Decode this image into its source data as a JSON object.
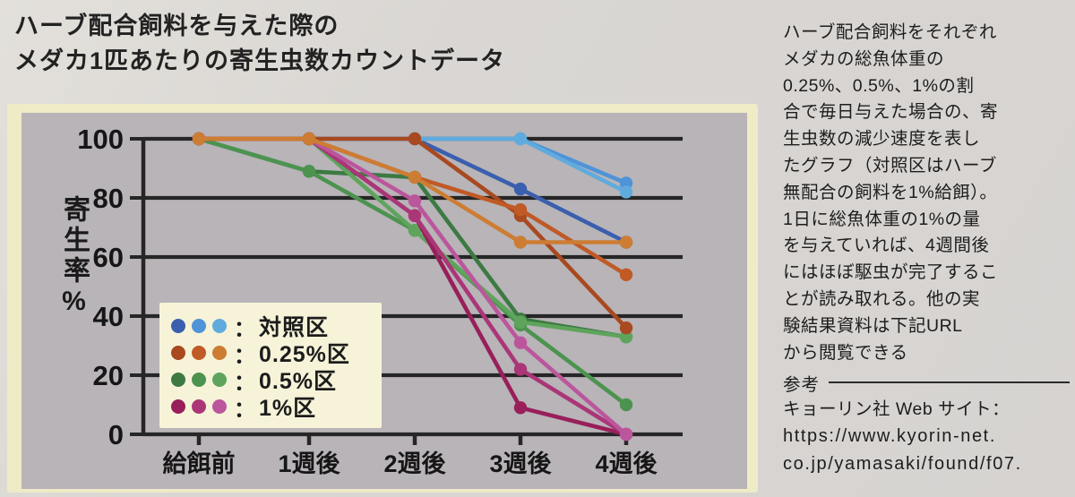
{
  "title": {
    "lines": [
      "ハーブ配合飼料を与えた際の",
      "メダカ1匹あたりの寄生虫数カウントデータ"
    ]
  },
  "sidebar": {
    "description_lines": [
      "ハーブ配合飼料をそれぞれ",
      "メダカの総魚体重の",
      "0.25%、0.5%、1%の割",
      "合で毎日与えた場合の、寄",
      "生虫数の減少速度を表し",
      "たグラフ（対照区はハーブ",
      "無配合の飼料を1%給餌）。",
      "1日に総魚体重の1%の量",
      "を与えていれば、4週間後",
      "にはほぼ駆虫が完了するこ",
      "とが読み取れる。他の実",
      "験結果資料は下記URL",
      "から閲覧できる"
    ],
    "reference_label": "参考",
    "site_label": "キョーリン社 Web サイト：",
    "url_lines": [
      "https://www.kyorin-net.",
      "co.jp/yamasaki/found/f07."
    ]
  },
  "chart_data": {
    "type": "line",
    "title": "メダカ1匹あたりの寄生虫数カウントデータ",
    "xlabel": "",
    "ylabel": "寄生率%",
    "categories": [
      "給餌前",
      "1週後",
      "2週後",
      "3週後",
      "4週後"
    ],
    "y_ticks": [
      100,
      80,
      60,
      40,
      20,
      0
    ],
    "ylim": [
      0,
      100
    ],
    "grid": true,
    "legend_position": "lower-left-inside",
    "legend_colon": "：",
    "panel_bg": "#eeebc6",
    "plot_bg": "#b8b4b8",
    "grid_color": "#262626",
    "legend_entries": [
      {
        "label": "対照区",
        "dot_colors": [
          "#3a5fae",
          "#4f93d8",
          "#60abdd"
        ]
      },
      {
        "label": "0.25%区",
        "dot_colors": [
          "#a8491f",
          "#c05a26",
          "#cd7d33"
        ]
      },
      {
        "label": "0.5%区",
        "dot_colors": [
          "#3c7a42",
          "#4d9350",
          "#5fa45c"
        ]
      },
      {
        "label": "1%区",
        "dot_colors": [
          "#981f5a",
          "#aa3678",
          "#bb569c"
        ]
      }
    ],
    "series": [
      {
        "group": "対照区",
        "replicate": 1,
        "color": "#3a5fae",
        "values": [
          100,
          100,
          100,
          83,
          65
        ]
      },
      {
        "group": "対照区",
        "replicate": 2,
        "color": "#4f93d8",
        "values": [
          100,
          100,
          100,
          100,
          85
        ]
      },
      {
        "group": "対照区",
        "replicate": 3,
        "color": "#60abdd",
        "values": [
          100,
          100,
          100,
          100,
          82
        ]
      },
      {
        "group": "0.5%区",
        "replicate": 1,
        "color": "#3c7a42",
        "values": [
          100,
          89,
          87,
          39,
          33
        ]
      },
      {
        "group": "0.5%区",
        "replicate": 2,
        "color": "#4d9350",
        "values": [
          100,
          89,
          69,
          37,
          10
        ]
      },
      {
        "group": "0.5%区",
        "replicate": 3,
        "color": "#5fa45c",
        "values": [
          100,
          100,
          69,
          38,
          33
        ]
      },
      {
        "group": "1%区",
        "replicate": 1,
        "color": "#981f5a",
        "values": [
          100,
          100,
          74,
          9,
          0
        ]
      },
      {
        "group": "1%区",
        "replicate": 2,
        "color": "#aa3678",
        "values": [
          100,
          100,
          74,
          22,
          0
        ]
      },
      {
        "group": "1%区",
        "replicate": 3,
        "color": "#bb569c",
        "values": [
          100,
          100,
          79,
          31,
          0
        ]
      },
      {
        "group": "0.25%区",
        "replicate": 1,
        "color": "#a8491f",
        "values": [
          100,
          100,
          100,
          74,
          36
        ]
      },
      {
        "group": "0.25%区",
        "replicate": 2,
        "color": "#c05a26",
        "values": [
          100,
          100,
          87,
          76,
          54
        ]
      },
      {
        "group": "0.25%区",
        "replicate": 3,
        "color": "#cd7d33",
        "values": [
          100,
          100,
          87,
          65,
          65
        ]
      }
    ]
  }
}
